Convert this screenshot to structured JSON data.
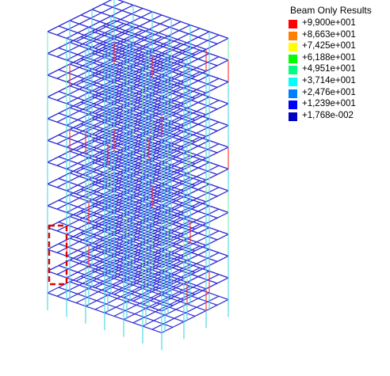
{
  "legend": {
    "title": "Beam Only Results",
    "entries": [
      {
        "label": "+9,900e+001",
        "color": "#ff0000"
      },
      {
        "label": "+8,663e+001",
        "color": "#ff8000"
      },
      {
        "label": "+7,425e+001",
        "color": "#ffff00"
      },
      {
        "label": "+6,188e+001",
        "color": "#00ff00"
      },
      {
        "label": "+4,951e+001",
        "color": "#00ff80"
      },
      {
        "label": "+3,714e+001",
        "color": "#00ffff"
      },
      {
        "label": "+2,476e+001",
        "color": "#0080ff"
      },
      {
        "label": "+1,239e+001",
        "color": "#0000ff"
      },
      {
        "label": "+1,768e-002",
        "color": "#0000c0"
      }
    ]
  },
  "colors": {
    "frame_beam": "#2a2ad6",
    "column_low": "#4fd8e8",
    "column_mid": "#7cf0b0",
    "column_high": "#ff3030",
    "highlight_box": "#e00000"
  },
  "structure": {
    "floors": 12,
    "grid_x": 13,
    "grid_z": 7
  }
}
